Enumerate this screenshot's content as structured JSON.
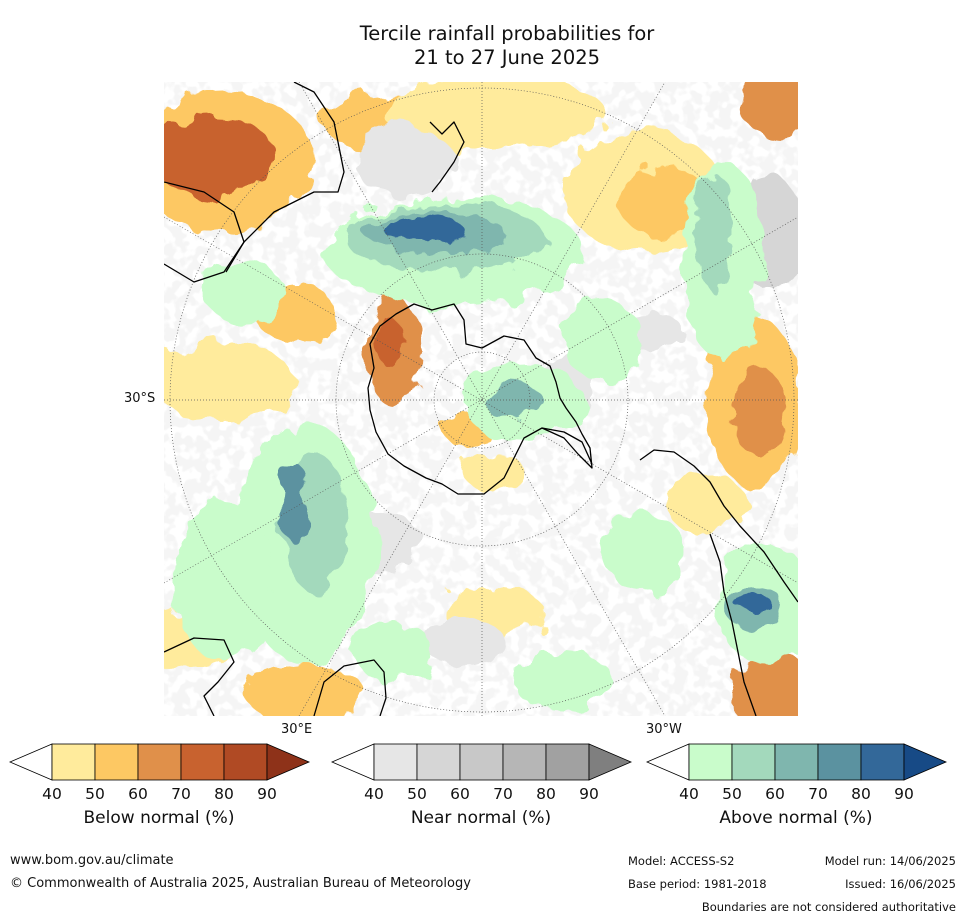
{
  "title": {
    "line1": "Tercile rainfall probabilities for",
    "line2": "21 to 27 June 2025"
  },
  "map": {
    "lat_label": "30°S",
    "lon_label_east": "30°E",
    "lon_label_west": "30°W"
  },
  "colorbars": [
    {
      "name": "Below normal (%)",
      "ticks": [
        "40",
        "50",
        "60",
        "70",
        "80",
        "90"
      ],
      "colors": [
        "#ffffff",
        "#ffeb9c",
        "#fdc863",
        "#e0904a",
        "#c8622f",
        "#b04a24",
        "#8e3219"
      ]
    },
    {
      "name": "Near normal (%)",
      "ticks": [
        "40",
        "50",
        "60",
        "70",
        "80",
        "90"
      ],
      "colors": [
        "#ffffff",
        "#e6e6e6",
        "#d6d6d6",
        "#c8c8c8",
        "#b6b6b6",
        "#a1a1a1",
        "#7f7f7f"
      ]
    },
    {
      "name": "Above normal (%)",
      "ticks": [
        "40",
        "50",
        "60",
        "70",
        "80",
        "90"
      ],
      "colors": [
        "#ffffff",
        "#c9fccb",
        "#a3d9bc",
        "#7fb6ae",
        "#5b92a0",
        "#336899",
        "#174a86"
      ]
    }
  ],
  "footer": {
    "website": "www.bom.gov.au/climate",
    "copyright": "© Commonwealth of Australia 2025, Australian Bureau of Meteorology",
    "model": "Model: ACCESS-S2",
    "model_run": "Model run: 14/06/2025",
    "base_period": "Base period: 1981-2018",
    "issued": "Issued: 16/06/2025",
    "disclaimer": "Boundaries are not considered authoritative"
  }
}
